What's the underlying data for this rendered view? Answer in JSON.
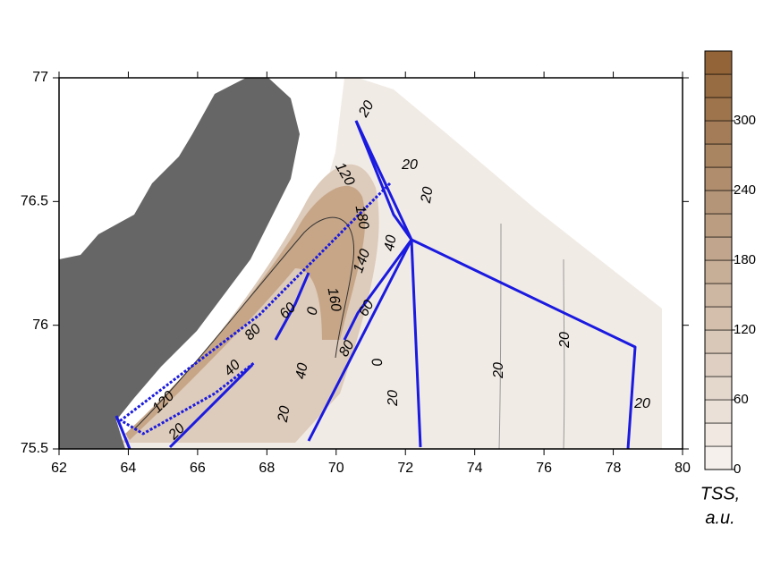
{
  "chart_data": {
    "type": "contour",
    "xlim": [
      62,
      80
    ],
    "ylim": [
      75.5,
      77
    ],
    "xticks": [
      62,
      64,
      66,
      68,
      70,
      72,
      74,
      76,
      78,
      80
    ],
    "yticks": [
      75.5,
      76,
      76.5,
      77
    ],
    "clim": [
      0,
      360
    ],
    "cticks": [
      0,
      60,
      120,
      180,
      240,
      300
    ],
    "colorbar_label": [
      "TSS,",
      "a.u."
    ],
    "contour_labels": [
      20,
      20,
      120,
      20,
      180,
      40,
      140,
      160,
      60,
      0,
      60,
      80,
      80,
      0,
      40,
      40,
      20,
      20,
      20,
      120,
      20,
      20,
      20
    ],
    "track_color": "#1a1ae0",
    "land_color": "#666666"
  }
}
